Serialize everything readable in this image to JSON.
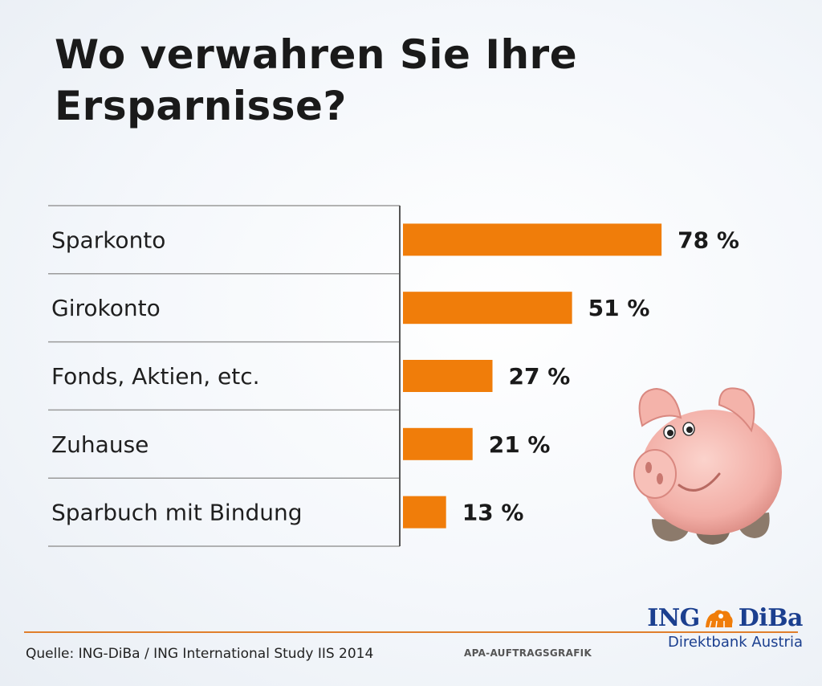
{
  "title": {
    "line1": "Wo verwahren Sie Ihre",
    "line2": "Ersparnisse?"
  },
  "chart_data": {
    "type": "bar",
    "orientation": "horizontal",
    "title": "Wo verwahren Sie Ihre Ersparnisse?",
    "categories": [
      "Sparkonto",
      "Girokonto",
      "Fonds, Aktien, etc.",
      "Zuhause",
      "Sparbuch mit Bindung"
    ],
    "values": [
      78,
      51,
      27,
      21,
      13
    ],
    "value_labels": [
      "78 %",
      "51 %",
      "27 %",
      "21 %",
      "13 %"
    ],
    "unit": "%",
    "xlim": [
      0,
      100
    ],
    "grid": false,
    "bar_color": "#f07d0a"
  },
  "footer": {
    "source": "Quelle: ING-DiBa / ING International Study IIS 2014",
    "apa": "APA-AUFTRAGSGRAFIK"
  },
  "logo": {
    "brand_left": "ING",
    "brand_right": "DiBa",
    "subtitle": "Direktbank Austria"
  },
  "colors": {
    "accent": "#f07d0a",
    "brand_blue": "#1b3f8f",
    "rule": "#e07f2c"
  }
}
